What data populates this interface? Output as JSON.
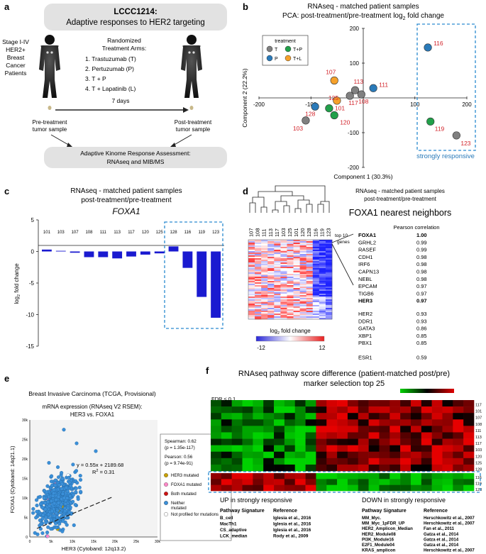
{
  "panels": {
    "a": {
      "letter": "a",
      "title_line1": "LCCC1214:",
      "title_line2": "Adaptive responses to HER2 targeting",
      "patients_label": [
        "Stage I-IV",
        "HER2+",
        "Breast",
        "Cancer",
        "Patients"
      ],
      "arms_title": [
        "Randomized",
        "Treatment Arms:"
      ],
      "arms": [
        "1. Trastuzumab (T)",
        "2. Pertuzumab (P)",
        "3. T + P",
        "4. T + Lapatinib (L)"
      ],
      "duration": "7 days",
      "pre_sample": [
        "Pre-treatment",
        "tumor sample"
      ],
      "post_sample": [
        "Post-treatment",
        "tumor sample"
      ],
      "assessment": [
        "Adaptive Kinome Response Assessment:",
        "RNAseq and MIB/MS"
      ]
    },
    "b": {
      "letter": "b",
      "title_line1": "RNAseq - matched patient samples",
      "title_line2_pre": "PCA: post-treatment/pre-treatment log",
      "title_sub": "2",
      "title_line2_post": " fold change",
      "highlight_label": "strongly responsive"
    },
    "c": {
      "letter": "c",
      "title_line1": "RNAseq - matched patient samples",
      "title_line2": "post-treatment/pre-treatment",
      "gene": "FOXA1"
    },
    "d": {
      "letter": "d",
      "subtitle_line1": "RNAseq - matched patient samples",
      "subtitle_line2": "post-treatment/pre-treatment",
      "title": "FOXA1 nearest neighbors",
      "column_labels": [
        "107",
        "108",
        "111",
        "113",
        "117",
        "103",
        "125",
        "101",
        "120",
        "128",
        "116",
        "119",
        "123"
      ],
      "top10_label": [
        "top 10",
        "genes"
      ],
      "corr_header": "Pearson correlation",
      "neighbors": [
        {
          "gene": "FOXA1",
          "r": "1.00",
          "bold": true
        },
        {
          "gene": "GRHL2",
          "r": "0.99"
        },
        {
          "gene": "RASEF",
          "r": "0.99"
        },
        {
          "gene": "CDH1",
          "r": "0.98"
        },
        {
          "gene": "IRF6",
          "r": "0.98"
        },
        {
          "gene": "CAPN13",
          "r": "0.98"
        },
        {
          "gene": "NEBL",
          "r": "0.98"
        },
        {
          "gene": "EPCAM",
          "r": "0.97"
        },
        {
          "gene": "TIGB6",
          "r": "0.97"
        },
        {
          "gene": "HER3",
          "r": "0.97",
          "bold": true
        }
      ],
      "others": [
        {
          "gene": "HER2",
          "r": "0.93"
        },
        {
          "gene": "DDR1",
          "r": "0.93"
        },
        {
          "gene": "GATA3",
          "r": "0.86"
        },
        {
          "gene": "XBP1",
          "r": "0.85"
        },
        {
          "gene": "PBX1",
          "r": "0.85"
        }
      ],
      "last": {
        "gene": "ESR1",
        "r": "0.59"
      },
      "scale_label_pre": "log",
      "scale_label_sub": "2",
      "scale_label_post": " fold change",
      "scale_min": "-12",
      "scale_max": "12"
    },
    "e": {
      "letter": "e",
      "title": "Breast Invasive Carcinoma (TCGA, Provisional)",
      "subtitle_line1": "mRNA expression (RNAseq V2 RSEM):",
      "subtitle_line2": "HER3 vs. FOXA1",
      "equation": "y = 0.55x + 2189.68",
      "r2_pre": "R",
      "r2_sup": "2",
      "r2_post": " = 0.31",
      "xlabel": "HER3 (Cytoband: 12q13.2)",
      "ylabel": "FOXA1 (Cytoband: 14q21.1)",
      "stats": [
        "Spearman: 0.62",
        "(p = 1.35e-117)",
        "Pearson: 0.56",
        "(p = 9.74e-91)"
      ],
      "legend": [
        {
          "label": "HER3 mutated",
          "color": "#c8a000"
        },
        {
          "label": "FOXA1 mutated",
          "color": "#ff88c8"
        },
        {
          "label": "Both mutated",
          "color": "#cc1111"
        },
        {
          "label": "Neither mutated",
          "color": "#3a8fd8"
        },
        {
          "label": "Not profiled for mutations",
          "color": "#ffffff"
        }
      ]
    },
    "f": {
      "letter": "f",
      "title_line1": "RNAseq pathway score difference (patient-matched post/pre)",
      "title_line2": "marker selection top 25",
      "fdr": "FDR ≤ 0.1",
      "row_labels": [
        "117",
        "101",
        "107",
        "108",
        "111",
        "113",
        "117",
        "103",
        "120",
        "125",
        "128"
      ],
      "bottom_row_labels": [
        "116",
        "119",
        "123"
      ],
      "up_title": "UP in strongly responsive",
      "down_title": "DOWN in strongly responsive",
      "col_pathway": "Pathway Signature",
      "col_reference": "Reference",
      "up_rows": [
        [
          "B_cell",
          "Iglesia et al., 2016"
        ],
        [
          "MacTh1",
          "Iglesia et al., 2016"
        ],
        [
          "CS_adaptive",
          "Iglesia et al., 2016"
        ],
        [
          "LCK_median",
          "Rody et al., 2009"
        ]
      ],
      "down_rows": [
        [
          "MM_Myc.",
          "Herschkowitz et al., 2007"
        ],
        [
          "MM_Myc_1pFDR_UP",
          "Herschkowitz et al., 2007"
        ],
        [
          "HER2_Amplicon_Median",
          "Fan et al., 2011"
        ],
        [
          "HER2_Module08",
          "Gatza et al., 2014"
        ],
        [
          "PI3K_Module16",
          "Gatza et al., 2014"
        ],
        [
          "E2F1_Module04",
          "Gatza et al., 2014"
        ],
        [
          "KRAS_amplicon",
          "Herschkowitz et al., 2007"
        ]
      ]
    }
  },
  "chart_data": [
    {
      "type": "scatter",
      "title": "PCA: post-treatment/pre-treatment log2 fold change",
      "xlabel": "Component 1 (30.3%)",
      "ylabel": "Component 2 (22.2%)",
      "xlim": [
        -200,
        200
      ],
      "ylim": [
        -200,
        200
      ],
      "xticks": [
        "-200",
        "-100",
        "100",
        "200"
      ],
      "yticks": [
        "200",
        "100",
        "-100",
        "-200"
      ],
      "legend_title": "treatment",
      "legend": [
        {
          "label": "T",
          "color": "#808080"
        },
        {
          "label": "T+P",
          "color": "#21a04a"
        },
        {
          "label": "P",
          "color": "#2a7ab9"
        },
        {
          "label": "T+L",
          "color": "#f6a12a"
        }
      ],
      "points": [
        {
          "label": "116",
          "x": 125,
          "y": 145,
          "group": "P"
        },
        {
          "label": "111",
          "x": 20,
          "y": 28,
          "group": "P"
        },
        {
          "label": "113",
          "x": -15,
          "y": 22,
          "group": "T"
        },
        {
          "label": "108",
          "x": -3,
          "y": 10,
          "group": "T"
        },
        {
          "label": "117",
          "x": -25,
          "y": 6,
          "group": "T"
        },
        {
          "label": "107",
          "x": -55,
          "y": 50,
          "group": "T+L"
        },
        {
          "label": "125",
          "x": -50,
          "y": -8,
          "group": "T+L"
        },
        {
          "label": "101",
          "x": -65,
          "y": -30,
          "group": "T+P"
        },
        {
          "label": "128",
          "x": -92,
          "y": -25,
          "group": "P"
        },
        {
          "label": "120",
          "x": -55,
          "y": -50,
          "group": "T+P"
        },
        {
          "label": "103",
          "x": -110,
          "y": -65,
          "group": "T"
        },
        {
          "label": "119",
          "x": 130,
          "y": -68,
          "group": "T+P"
        },
        {
          "label": "123",
          "x": 180,
          "y": -108,
          "group": "T"
        }
      ]
    },
    {
      "type": "bar",
      "title": "FOXA1",
      "ylabel": "log2 fold change",
      "ylim": [
        -15,
        5
      ],
      "yticks": [
        "5",
        "0",
        "-5",
        "-10",
        "-15"
      ],
      "categories": [
        "101",
        "103",
        "107",
        "108",
        "111",
        "113",
        "117",
        "120",
        "125",
        "128",
        "116",
        "119",
        "123"
      ],
      "values": [
        0.3,
        0.1,
        -0.2,
        -0.9,
        -0.9,
        -1.1,
        -0.8,
        -0.5,
        -0.3,
        0.8,
        -2.6,
        -7.2,
        -10.5
      ]
    },
    {
      "type": "scatter",
      "title": "HER3 vs. FOXA1",
      "xlabel": "HER3 (Cytoband: 12q13.2)",
      "ylabel": "FOXA1 (Cytoband: 14q21.1)",
      "xticks": [
        "0",
        "5k",
        "10k",
        "15k",
        "20k",
        "25k",
        "30k"
      ],
      "yticks": [
        "0",
        "5k",
        "10k",
        "15k",
        "20k",
        "25k",
        "30k"
      ],
      "xlim": [
        0,
        30000
      ],
      "ylim": [
        0,
        30000
      ]
    }
  ]
}
